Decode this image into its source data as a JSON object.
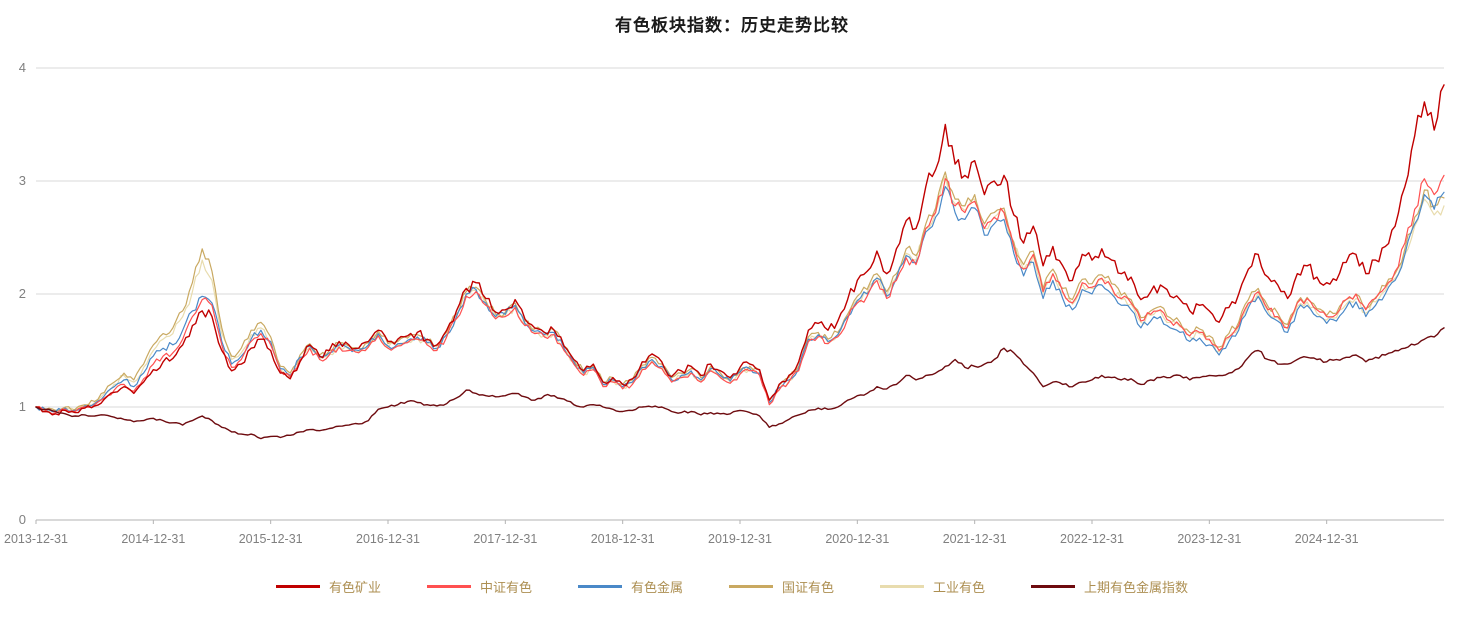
{
  "chart_data": {
    "type": "line",
    "title": "有色板块指数：历史走势比较",
    "x_start": "2013-12",
    "x_freq": "monthly",
    "x_tick_month_index": [
      0,
      12,
      24,
      36,
      48,
      60,
      72,
      84,
      96,
      108,
      120,
      132
    ],
    "x_tick_labels": [
      "2013-12-31",
      "2014-12-31",
      "2015-12-31",
      "2016-12-31",
      "2017-12-31",
      "2018-12-31",
      "2019-12-31",
      "2020-12-31",
      "2021-12-31",
      "2022-12-31",
      "2023-12-31",
      "2024-12-31"
    ],
    "yticks": [
      "0",
      "1",
      "2",
      "3",
      "4"
    ],
    "ylim": [
      0,
      4
    ],
    "grid": "horizontal",
    "legend_position": "bottom",
    "colors": {
      "background": "#ffffff",
      "title": "#1a1a1a",
      "axis_label": "#808080",
      "gridline": "#d9d9d9",
      "axis_line": "#b3b3b3",
      "legend_text": "#ad8f52"
    },
    "series": [
      {
        "name": "有色矿业",
        "key": "nonferrous-mining",
        "color": "#c00000",
        "values": [
          1.0,
          0.96,
          0.94,
          0.97,
          0.95,
          0.99,
          1.01,
          1.07,
          1.13,
          1.18,
          1.12,
          1.22,
          1.33,
          1.4,
          1.43,
          1.55,
          1.72,
          1.85,
          1.8,
          1.5,
          1.32,
          1.38,
          1.52,
          1.6,
          1.5,
          1.3,
          1.25,
          1.4,
          1.55,
          1.45,
          1.5,
          1.58,
          1.55,
          1.52,
          1.58,
          1.68,
          1.58,
          1.6,
          1.63,
          1.66,
          1.6,
          1.55,
          1.68,
          1.85,
          2.05,
          2.1,
          1.96,
          1.84,
          1.86,
          1.95,
          1.78,
          1.7,
          1.66,
          1.68,
          1.54,
          1.42,
          1.32,
          1.38,
          1.22,
          1.26,
          1.2,
          1.25,
          1.4,
          1.47,
          1.4,
          1.27,
          1.32,
          1.36,
          1.28,
          1.38,
          1.32,
          1.26,
          1.35,
          1.38,
          1.33,
          1.06,
          1.2,
          1.28,
          1.4,
          1.68,
          1.74,
          1.68,
          1.76,
          1.95,
          2.12,
          2.2,
          2.38,
          2.18,
          2.4,
          2.65,
          2.58,
          2.95,
          3.1,
          3.5,
          3.15,
          3.05,
          3.18,
          2.88,
          3.0,
          3.05,
          2.7,
          2.45,
          2.6,
          2.25,
          2.42,
          2.25,
          2.12,
          2.35,
          2.3,
          2.4,
          2.3,
          2.18,
          2.15,
          1.95,
          2.02,
          2.08,
          1.98,
          1.95,
          1.85,
          1.9,
          1.85,
          1.75,
          1.88,
          2.0,
          2.22,
          2.35,
          2.15,
          2.08,
          1.96,
          2.18,
          2.25,
          2.15,
          2.1,
          2.12,
          2.28,
          2.35,
          2.18,
          2.3,
          2.42,
          2.6,
          2.95,
          3.4,
          3.7,
          3.45,
          3.85
        ]
      },
      {
        "name": "中证有色",
        "key": "csi-nonferrous",
        "color": "#ff5050",
        "values": [
          1.0,
          0.97,
          0.95,
          0.98,
          0.96,
          1.0,
          1.02,
          1.08,
          1.15,
          1.2,
          1.14,
          1.25,
          1.38,
          1.45,
          1.48,
          1.6,
          1.8,
          1.95,
          1.9,
          1.55,
          1.35,
          1.42,
          1.58,
          1.65,
          1.55,
          1.32,
          1.27,
          1.42,
          1.52,
          1.42,
          1.46,
          1.53,
          1.5,
          1.48,
          1.53,
          1.63,
          1.52,
          1.54,
          1.57,
          1.6,
          1.55,
          1.5,
          1.62,
          1.78,
          1.98,
          2.02,
          1.9,
          1.78,
          1.8,
          1.88,
          1.72,
          1.65,
          1.62,
          1.64,
          1.5,
          1.38,
          1.28,
          1.33,
          1.18,
          1.22,
          1.16,
          1.2,
          1.33,
          1.4,
          1.34,
          1.22,
          1.26,
          1.3,
          1.22,
          1.32,
          1.26,
          1.21,
          1.29,
          1.32,
          1.28,
          1.02,
          1.15,
          1.22,
          1.32,
          1.58,
          1.62,
          1.56,
          1.62,
          1.78,
          1.92,
          1.98,
          2.12,
          1.96,
          2.12,
          2.32,
          2.26,
          2.58,
          2.72,
          3.02,
          2.78,
          2.72,
          2.82,
          2.58,
          2.68,
          2.72,
          2.42,
          2.22,
          2.35,
          2.02,
          2.18,
          2.02,
          1.92,
          2.1,
          2.06,
          2.14,
          2.06,
          1.96,
          1.92,
          1.76,
          1.82,
          1.86,
          1.76,
          1.72,
          1.63,
          1.66,
          1.6,
          1.5,
          1.62,
          1.72,
          1.92,
          2.02,
          1.86,
          1.8,
          1.7,
          1.92,
          1.96,
          1.86,
          1.8,
          1.82,
          1.95,
          2.0,
          1.86,
          1.96,
          2.06,
          2.2,
          2.45,
          2.75,
          3.02,
          2.88,
          3.05
        ]
      },
      {
        "name": "有色金属",
        "key": "nonferrous-metals",
        "color": "#4a89c8",
        "values": [
          1.0,
          0.97,
          0.96,
          0.99,
          0.97,
          1.01,
          1.03,
          1.1,
          1.18,
          1.24,
          1.18,
          1.3,
          1.45,
          1.52,
          1.55,
          1.68,
          1.85,
          1.98,
          1.92,
          1.58,
          1.38,
          1.45,
          1.6,
          1.68,
          1.58,
          1.34,
          1.28,
          1.44,
          1.54,
          1.44,
          1.48,
          1.55,
          1.52,
          1.5,
          1.55,
          1.65,
          1.54,
          1.56,
          1.59,
          1.62,
          1.57,
          1.52,
          1.64,
          1.8,
          2.0,
          2.04,
          1.92,
          1.8,
          1.82,
          1.9,
          1.74,
          1.67,
          1.64,
          1.66,
          1.52,
          1.4,
          1.3,
          1.35,
          1.2,
          1.24,
          1.18,
          1.22,
          1.35,
          1.42,
          1.36,
          1.24,
          1.28,
          1.32,
          1.24,
          1.34,
          1.28,
          1.23,
          1.31,
          1.34,
          1.3,
          1.04,
          1.17,
          1.24,
          1.34,
          1.6,
          1.64,
          1.58,
          1.64,
          1.8,
          1.94,
          2.0,
          2.14,
          1.98,
          2.14,
          2.34,
          2.28,
          2.55,
          2.68,
          2.95,
          2.72,
          2.66,
          2.76,
          2.52,
          2.62,
          2.66,
          2.36,
          2.16,
          2.28,
          1.96,
          2.12,
          1.96,
          1.86,
          2.04,
          2.0,
          2.08,
          2.0,
          1.9,
          1.86,
          1.7,
          1.76,
          1.8,
          1.7,
          1.66,
          1.58,
          1.61,
          1.55,
          1.46,
          1.58,
          1.68,
          1.88,
          1.98,
          1.82,
          1.76,
          1.66,
          1.86,
          1.9,
          1.8,
          1.74,
          1.76,
          1.88,
          1.93,
          1.8,
          1.9,
          2.0,
          2.12,
          2.35,
          2.62,
          2.88,
          2.75,
          2.9
        ]
      },
      {
        "name": "国证有色",
        "key": "cni-nonferrous",
        "color": "#c9a961",
        "values": [
          1.0,
          0.98,
          0.97,
          1.0,
          0.98,
          1.02,
          1.05,
          1.13,
          1.22,
          1.3,
          1.24,
          1.38,
          1.55,
          1.65,
          1.7,
          1.85,
          2.1,
          2.4,
          2.2,
          1.7,
          1.45,
          1.52,
          1.68,
          1.75,
          1.62,
          1.36,
          1.3,
          1.46,
          1.56,
          1.46,
          1.5,
          1.57,
          1.54,
          1.52,
          1.57,
          1.67,
          1.56,
          1.58,
          1.61,
          1.64,
          1.59,
          1.54,
          1.66,
          1.82,
          2.02,
          2.06,
          1.94,
          1.82,
          1.84,
          1.92,
          1.76,
          1.69,
          1.66,
          1.68,
          1.54,
          1.42,
          1.32,
          1.37,
          1.22,
          1.26,
          1.2,
          1.24,
          1.37,
          1.44,
          1.38,
          1.26,
          1.3,
          1.34,
          1.26,
          1.36,
          1.3,
          1.25,
          1.33,
          1.36,
          1.32,
          1.06,
          1.19,
          1.26,
          1.36,
          1.62,
          1.66,
          1.6,
          1.66,
          1.82,
          1.98,
          2.04,
          2.18,
          2.02,
          2.18,
          2.4,
          2.34,
          2.62,
          2.76,
          3.08,
          2.84,
          2.78,
          2.88,
          2.62,
          2.72,
          2.76,
          2.46,
          2.26,
          2.38,
          2.05,
          2.22,
          2.05,
          1.95,
          2.13,
          2.09,
          2.17,
          2.09,
          1.99,
          1.95,
          1.79,
          1.85,
          1.89,
          1.79,
          1.75,
          1.66,
          1.69,
          1.63,
          1.53,
          1.65,
          1.75,
          1.95,
          2.05,
          1.89,
          1.83,
          1.73,
          1.93,
          1.97,
          1.87,
          1.81,
          1.83,
          1.95,
          2.0,
          1.87,
          1.97,
          2.07,
          2.18,
          2.4,
          2.68,
          2.92,
          2.78,
          2.85
        ]
      },
      {
        "name": "工业有色",
        "key": "industrial-nonferrous",
        "color": "#e8dcae",
        "values": [
          1.0,
          0.98,
          0.96,
          0.99,
          0.97,
          1.01,
          1.04,
          1.12,
          1.2,
          1.28,
          1.22,
          1.35,
          1.5,
          1.6,
          1.65,
          1.8,
          2.02,
          2.3,
          2.12,
          1.65,
          1.42,
          1.48,
          1.64,
          1.7,
          1.58,
          1.33,
          1.27,
          1.43,
          1.53,
          1.43,
          1.47,
          1.54,
          1.51,
          1.49,
          1.54,
          1.64,
          1.53,
          1.55,
          1.58,
          1.61,
          1.56,
          1.51,
          1.63,
          1.79,
          1.99,
          2.03,
          1.91,
          1.79,
          1.81,
          1.89,
          1.73,
          1.66,
          1.63,
          1.65,
          1.51,
          1.39,
          1.29,
          1.34,
          1.19,
          1.23,
          1.17,
          1.21,
          1.34,
          1.41,
          1.35,
          1.23,
          1.27,
          1.31,
          1.23,
          1.33,
          1.27,
          1.22,
          1.3,
          1.33,
          1.29,
          1.03,
          1.16,
          1.23,
          1.33,
          1.59,
          1.63,
          1.57,
          1.63,
          1.79,
          1.95,
          2.01,
          2.15,
          1.99,
          2.15,
          2.36,
          2.3,
          2.58,
          2.72,
          3.04,
          2.8,
          2.74,
          2.84,
          2.58,
          2.68,
          2.72,
          2.42,
          2.22,
          2.34,
          2.01,
          2.18,
          2.01,
          1.91,
          2.09,
          2.05,
          2.13,
          2.05,
          1.95,
          1.91,
          1.75,
          1.81,
          1.85,
          1.75,
          1.71,
          1.62,
          1.65,
          1.59,
          1.49,
          1.61,
          1.71,
          1.91,
          2.01,
          1.85,
          1.79,
          1.69,
          1.89,
          1.93,
          1.83,
          1.77,
          1.79,
          1.91,
          1.96,
          1.83,
          1.93,
          2.03,
          2.14,
          2.35,
          2.6,
          2.84,
          2.7,
          2.78
        ]
      },
      {
        "name": "上期有色金属指数",
        "key": "shfe-nonferrous-index",
        "color": "#6e0b0f",
        "values": [
          1.0,
          0.98,
          0.96,
          0.94,
          0.92,
          0.93,
          0.92,
          0.93,
          0.91,
          0.89,
          0.87,
          0.88,
          0.9,
          0.88,
          0.86,
          0.84,
          0.88,
          0.92,
          0.88,
          0.82,
          0.78,
          0.76,
          0.76,
          0.72,
          0.74,
          0.73,
          0.75,
          0.78,
          0.8,
          0.79,
          0.81,
          0.83,
          0.84,
          0.85,
          0.88,
          0.98,
          1.0,
          1.02,
          1.05,
          1.04,
          1.02,
          1.01,
          1.03,
          1.08,
          1.15,
          1.12,
          1.1,
          1.09,
          1.1,
          1.12,
          1.09,
          1.06,
          1.1,
          1.1,
          1.07,
          1.02,
          1.0,
          1.02,
          1.0,
          0.98,
          0.96,
          0.97,
          1.0,
          1.0,
          1.0,
          0.96,
          0.95,
          0.96,
          0.93,
          0.95,
          0.94,
          0.94,
          0.97,
          0.95,
          0.92,
          0.82,
          0.85,
          0.89,
          0.93,
          0.97,
          0.99,
          0.98,
          1.0,
          1.06,
          1.1,
          1.12,
          1.18,
          1.16,
          1.2,
          1.28,
          1.24,
          1.28,
          1.3,
          1.36,
          1.42,
          1.35,
          1.36,
          1.38,
          1.42,
          1.52,
          1.48,
          1.38,
          1.3,
          1.18,
          1.22,
          1.2,
          1.18,
          1.22,
          1.24,
          1.28,
          1.26,
          1.24,
          1.25,
          1.2,
          1.24,
          1.26,
          1.26,
          1.28,
          1.24,
          1.26,
          1.28,
          1.28,
          1.3,
          1.34,
          1.44,
          1.5,
          1.42,
          1.38,
          1.38,
          1.42,
          1.44,
          1.42,
          1.4,
          1.42,
          1.44,
          1.46,
          1.4,
          1.44,
          1.46,
          1.5,
          1.52,
          1.55,
          1.6,
          1.62,
          1.7
        ]
      }
    ]
  }
}
